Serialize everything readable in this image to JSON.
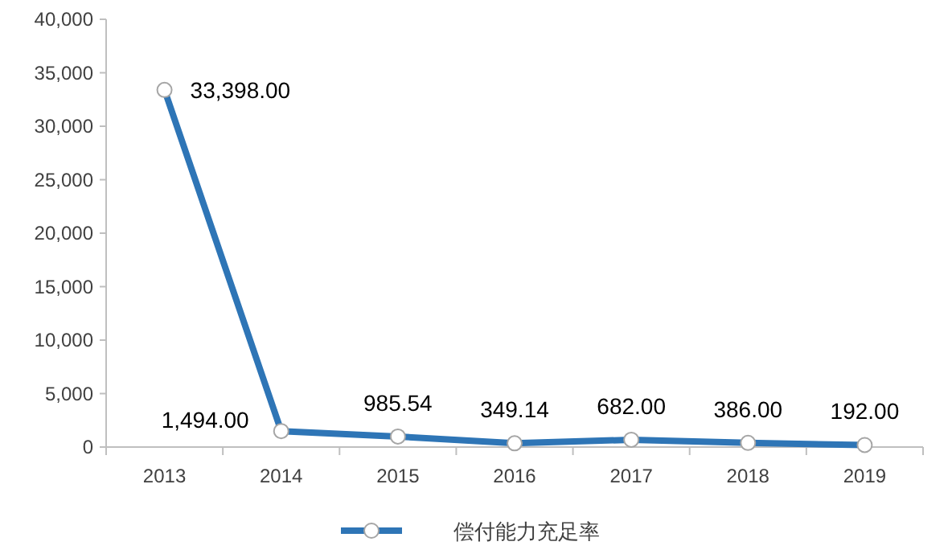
{
  "chart_data": {
    "type": "line",
    "categories": [
      "2013",
      "2014",
      "2015",
      "2016",
      "2017",
      "2018",
      "2019"
    ],
    "series": [
      {
        "name": "偿付能力充足率",
        "color": "#2e75b6",
        "values": [
          33398.0,
          1494.0,
          985.54,
          349.14,
          682.0,
          386.0,
          192.0
        ],
        "value_labels": [
          "33,398.00",
          "1,494.00",
          "985.54",
          "349.14",
          "682.00",
          "386.00",
          "192.00"
        ]
      }
    ],
    "ylim": [
      0,
      40000
    ],
    "yticks": [
      {
        "value": 0,
        "label": "0"
      },
      {
        "value": 5000,
        "label": "5,000"
      },
      {
        "value": 10000,
        "label": "10,000"
      },
      {
        "value": 15000,
        "label": "15,000"
      },
      {
        "value": 20000,
        "label": "20,000"
      },
      {
        "value": 25000,
        "label": "25,000"
      },
      {
        "value": 30000,
        "label": "30,000"
      },
      {
        "value": 35000,
        "label": "35,000"
      },
      {
        "value": 40000,
        "label": "40,000"
      }
    ],
    "grid": false,
    "legend": "bottom",
    "marker": "circle",
    "line_style": "solid"
  }
}
